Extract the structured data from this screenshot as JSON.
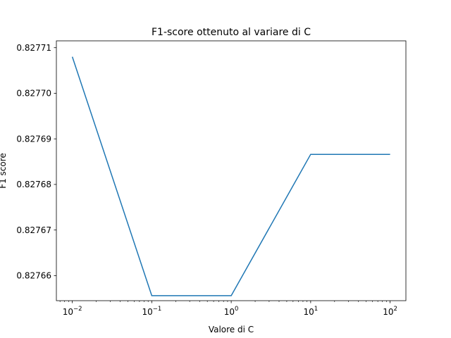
{
  "chart_data": {
    "type": "line",
    "title": "F1-score ottenuto al variare di C",
    "xlabel": "Valore di C",
    "ylabel": "F1 score",
    "xscale": "log",
    "xlim": [
      0.0063,
      158
    ],
    "ylim": [
      0.8276545,
      0.8277115
    ],
    "xticks": [
      {
        "value": 0.01,
        "base": "10",
        "exp": "−2"
      },
      {
        "value": 0.1,
        "base": "10",
        "exp": "−1"
      },
      {
        "value": 1,
        "base": "10",
        "exp": "0"
      },
      {
        "value": 10,
        "base": "10",
        "exp": "1"
      },
      {
        "value": 100,
        "base": "10",
        "exp": "2"
      }
    ],
    "yticks": [
      {
        "value": 0.82766,
        "label": "0.82766"
      },
      {
        "value": 0.82767,
        "label": "0.82767"
      },
      {
        "value": 0.82768,
        "label": "0.82768"
      },
      {
        "value": 0.82769,
        "label": "0.82769"
      },
      {
        "value": 0.8277,
        "label": "0.82770"
      },
      {
        "value": 0.82771,
        "label": "0.82771"
      }
    ],
    "series": [
      {
        "color": "#1f77b4",
        "x": [
          0.01,
          0.1,
          1,
          10,
          100
        ],
        "y": [
          0.827708,
          0.8276556,
          0.8276556,
          0.8276866,
          0.8276866
        ]
      }
    ],
    "grid": false
  }
}
